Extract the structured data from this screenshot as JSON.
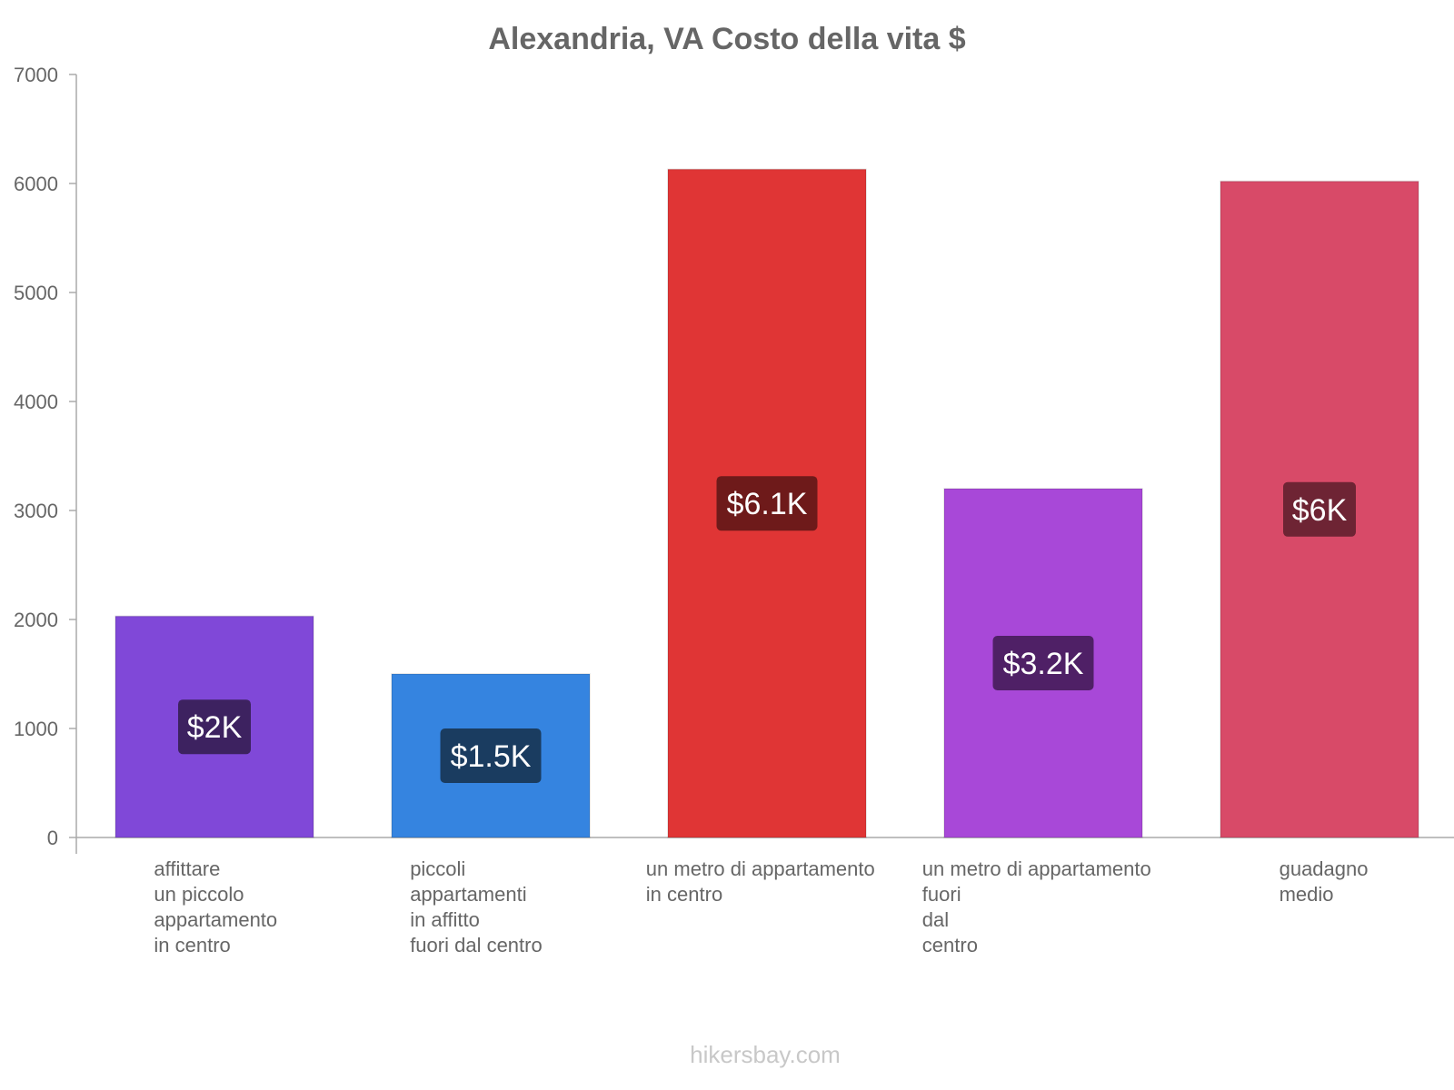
{
  "chart_data": {
    "type": "bar",
    "title": "Alexandria, VA Costo della vita $",
    "xlabel": "",
    "ylabel": "",
    "ylim": [
      0,
      7000
    ],
    "yticks": [
      0,
      1000,
      2000,
      3000,
      4000,
      5000,
      6000,
      7000
    ],
    "grid": false,
    "categories": [
      [
        "affittare",
        "un piccolo",
        "appartamento",
        "in centro"
      ],
      [
        "piccoli",
        "appartamenti",
        "in affitto",
        "fuori dal centro"
      ],
      [
        "un metro di appartamento",
        "in centro"
      ],
      [
        "un metro di appartamento",
        "fuori",
        "dal",
        "centro"
      ],
      [
        "guadagno",
        "medio"
      ]
    ],
    "values": [
      2030,
      1500,
      6130,
      3200,
      6020
    ],
    "data_labels": [
      "$2K",
      "$1.5K",
      "$6.1K",
      "$3.2K",
      "$6K"
    ],
    "colors": [
      "#8048d8",
      "#3584e0",
      "#e03535",
      "#a848d8",
      "#d84a68"
    ],
    "label_bg_colors": [
      "#3d2260",
      "#1a3c60",
      "#6e1a1a",
      "#4f2066",
      "#6e2434"
    ]
  },
  "footer": "hikersbay.com"
}
